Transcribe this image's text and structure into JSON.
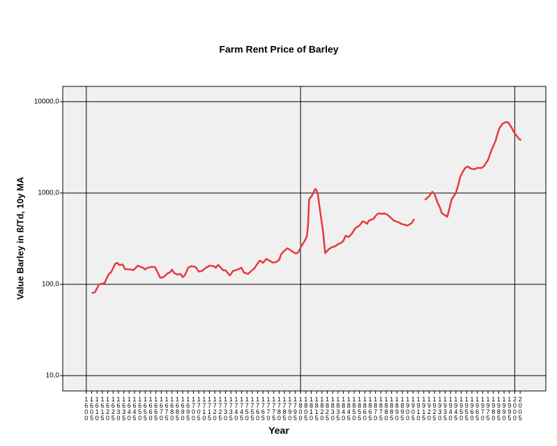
{
  "chart_data": {
    "type": "line",
    "title": "Farm Rent Price of Barley",
    "x_label": "Year",
    "y_label": "Value Barley in ß/Td, 10y MA",
    "log_y": true,
    "grid": true,
    "x_reference_lines": [
      1600,
      1800,
      2000
    ],
    "xlim": [
      1578,
      2029
    ],
    "ylim": [
      6.8,
      14700
    ],
    "xticks": [
      1600,
      1605,
      1610,
      1615,
      1620,
      1625,
      1630,
      1635,
      1640,
      1645,
      1650,
      1655,
      1660,
      1665,
      1670,
      1675,
      1680,
      1685,
      1690,
      1695,
      1700,
      1705,
      1710,
      1715,
      1720,
      1725,
      1730,
      1735,
      1740,
      1745,
      1750,
      1755,
      1760,
      1765,
      1770,
      1775,
      1780,
      1785,
      1790,
      1795,
      1800,
      1805,
      1810,
      1815,
      1820,
      1825,
      1830,
      1835,
      1840,
      1845,
      1850,
      1855,
      1860,
      1865,
      1870,
      1875,
      1880,
      1885,
      1890,
      1895,
      1900,
      1905,
      1910,
      1915,
      1920,
      1925,
      1930,
      1935,
      1940,
      1945,
      1950,
      1955,
      1960,
      1965,
      1970,
      1975,
      1980,
      1985,
      1990,
      1995,
      2000,
      2005
    ],
    "yticks": [
      {
        "value": 10,
        "label": "10,0"
      },
      {
        "value": 100,
        "label": "100,0"
      },
      {
        "value": 1000,
        "label": "1000,0"
      },
      {
        "value": 10000,
        "label": "10000,0"
      }
    ],
    "x": [
      1605,
      1608,
      1612,
      1617,
      1621,
      1623,
      1627,
      1629,
      1631,
      1634,
      1636,
      1642,
      1644,
      1648,
      1651,
      1653,
      1655,
      1657,
      1661,
      1664,
      1666,
      1669,
      1672,
      1676,
      1678,
      1680,
      1682,
      1685,
      1688,
      1690,
      1692,
      1695,
      1698,
      1702,
      1705,
      1708,
      1711,
      1715,
      1719,
      1721,
      1723,
      1725,
      1728,
      1730,
      1734,
      1737,
      1741,
      1745,
      1747,
      1751,
      1754,
      1757,
      1760,
      1762,
      1765,
      1768,
      1771,
      1774,
      1777,
      1780,
      1782,
      1786,
      1788,
      1791,
      1794,
      1796,
      1798,
      1801,
      1804,
      1806,
      1807,
      1808,
      1811,
      1813,
      1814,
      1816,
      1819,
      1821,
      1823,
      1826,
      1829,
      1832,
      1835,
      1838,
      1840,
      1842,
      1845,
      1848,
      1851,
      1855,
      1858,
      1860,
      1862,
      1864,
      1868,
      1871,
      1873,
      1876,
      1878,
      1881,
      1884,
      1887,
      1891,
      1894,
      1897,
      1900,
      1904,
      1906,
      1910,
      1916,
      1920,
      1923,
      1925,
      1928,
      1930,
      1932,
      1935,
      1937,
      1939,
      1941,
      1945,
      1947,
      1949,
      1952,
      1954,
      1956,
      1959,
      1962,
      1965,
      1969,
      1971,
      1975,
      1978,
      1982,
      1984,
      1986,
      1989,
      1992,
      1994,
      1997,
      1999,
      2002,
      2004,
      2006
    ],
    "series": [
      {
        "name": "Value Barley",
        "color": "#e8383d",
        "values": [
          80,
          82,
          100,
          103,
          130,
          135,
          168,
          172,
          162,
          165,
          147,
          145,
          143,
          160,
          155,
          152,
          145,
          152,
          155,
          155,
          140,
          118,
          120,
          132,
          135,
          145,
          133,
          128,
          130,
          120,
          125,
          152,
          158,
          155,
          138,
          140,
          150,
          160,
          158,
          152,
          163,
          155,
          142,
          142,
          125,
          140,
          145,
          152,
          135,
          130,
          140,
          150,
          170,
          182,
          172,
          190,
          182,
          173,
          175,
          185,
          215,
          240,
          248,
          235,
          222,
          218,
          225,
          265,
          300,
          340,
          450,
          850,
          950,
          1070,
          1110,
          1000,
          550,
          380,
          220,
          240,
          255,
          260,
          275,
          285,
          300,
          340,
          330,
          360,
          410,
          440,
          490,
          480,
          460,
          500,
          520,
          580,
          600,
          590,
          600,
          580,
          540,
          500,
          480,
          460,
          450,
          440,
          470,
          520,
          null,
          840,
          920,
          1030,
          980,
          780,
          700,
          600,
          570,
          550,
          680,
          850,
          1000,
          1200,
          1500,
          1750,
          1900,
          1950,
          1850,
          1820,
          1880,
          1880,
          1950,
          2300,
          2900,
          3700,
          4500,
          5200,
          5800,
          6000,
          5900,
          5200,
          4700,
          4200,
          3900,
          3800
        ]
      }
    ]
  }
}
